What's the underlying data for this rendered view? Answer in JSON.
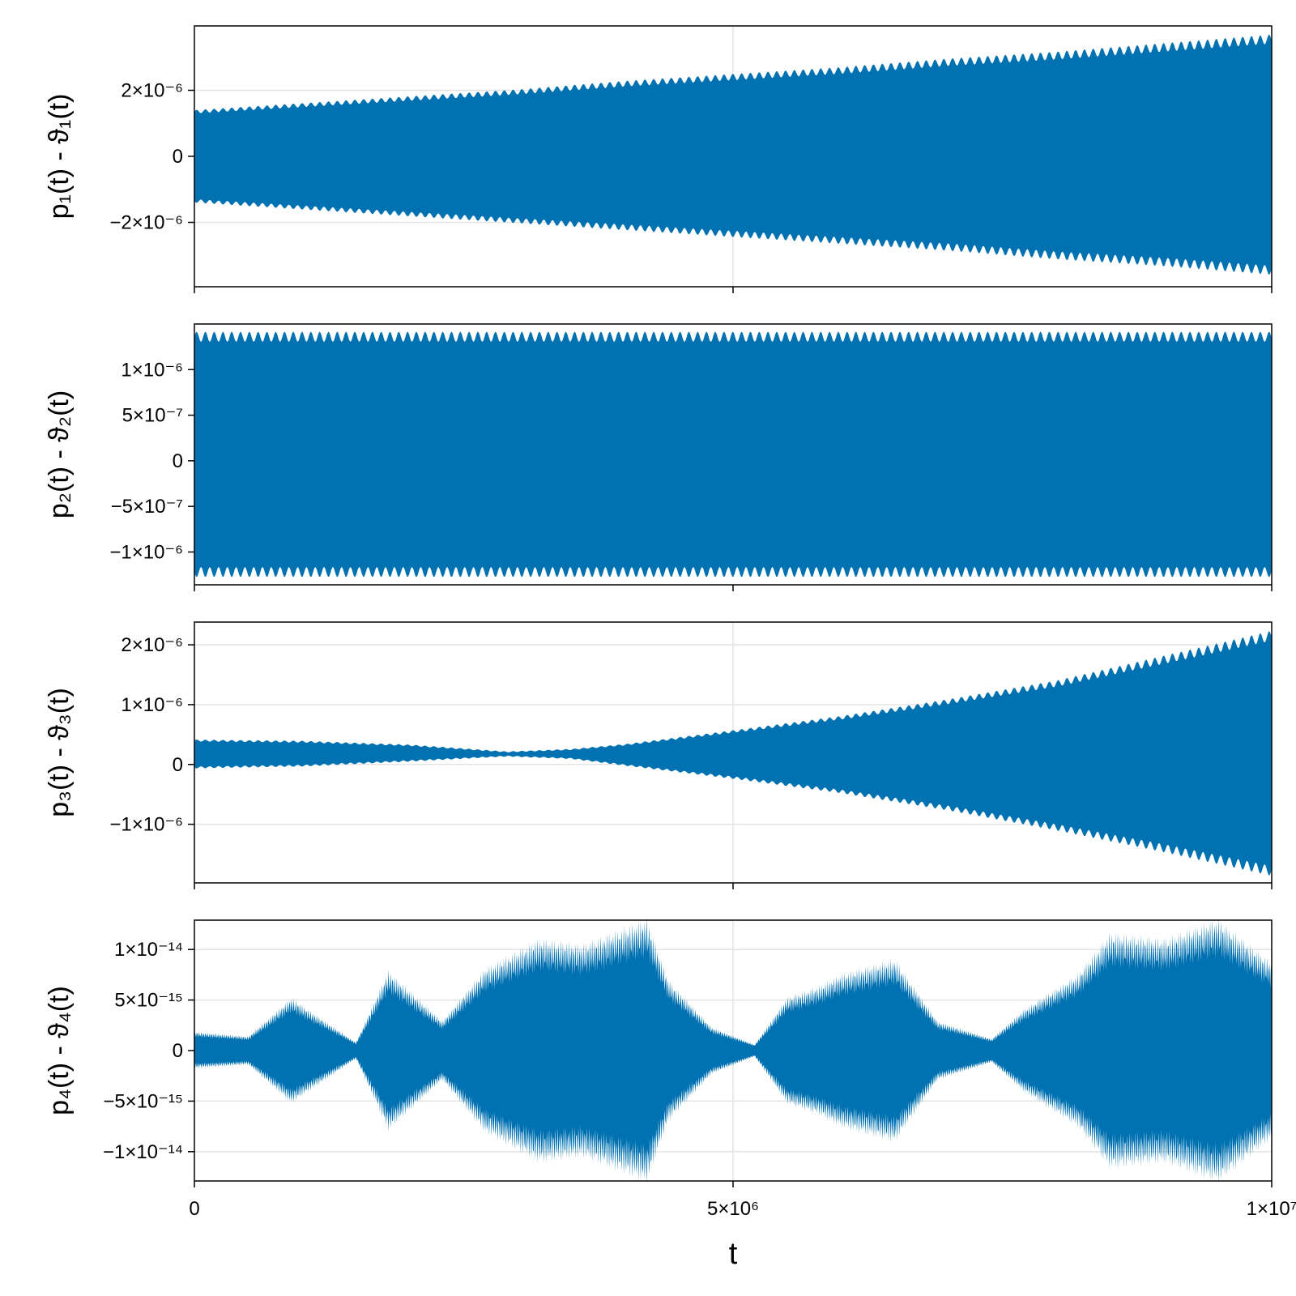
{
  "chart_data": [
    {
      "type": "area",
      "ylabel": "p₁(t) - ϑ₁(t)",
      "yticks": [
        {
          "value": 2e-06,
          "label": "2×10⁻⁶"
        },
        {
          "value": 0,
          "label": "0"
        },
        {
          "value": -2e-06,
          "label": "−2×10⁻⁶"
        }
      ],
      "ylim": [
        -3.95e-06,
        3.95e-06
      ],
      "xlim": [
        0,
        10000000
      ],
      "grid": true,
      "color": "#0072b2",
      "series": [
        {
          "x": [
            0,
            1000000,
            2000000,
            3000000,
            4000000,
            5000000,
            6000000,
            7000000,
            8000000,
            9000000,
            10000000
          ],
          "upper": [
            1.35e-06,
            1.55e-06,
            1.75e-06,
            1.95e-06,
            2.2e-06,
            2.4e-06,
            2.6e-06,
            2.85e-06,
            3.05e-06,
            3.3e-06,
            3.55e-06
          ],
          "lower": [
            -1.35e-06,
            -1.55e-06,
            -1.75e-06,
            -1.95e-06,
            -2.15e-06,
            -2.35e-06,
            -2.55e-06,
            -2.75e-06,
            -3e-06,
            -3.2e-06,
            -3.45e-06
          ]
        }
      ]
    },
    {
      "type": "area",
      "ylabel": "p₂(t) - ϑ₂(t)",
      "yticks": [
        {
          "value": 1e-06,
          "label": "1×10⁻⁶"
        },
        {
          "value": 5e-07,
          "label": "5×10⁻⁷"
        },
        {
          "value": 0,
          "label": "0"
        },
        {
          "value": -5e-07,
          "label": "−5×10⁻⁷"
        },
        {
          "value": -1e-06,
          "label": "−1×10⁻⁶"
        }
      ],
      "ylim": [
        -1.36e-06,
        1.5e-06
      ],
      "xlim": [
        0,
        10000000
      ],
      "grid": false,
      "color": "#0072b2",
      "series": [
        {
          "x": [
            0,
            2500000,
            5000000,
            7500000,
            10000000
          ],
          "upper": [
            1.36e-06,
            1.36e-06,
            1.36e-06,
            1.36e-06,
            1.36e-06
          ],
          "lower": [
            -1.22e-06,
            -1.22e-06,
            -1.22e-06,
            -1.22e-06,
            -1.22e-06
          ]
        }
      ]
    },
    {
      "type": "area",
      "ylabel": "p₃(t) - ϑ₃(t)",
      "yticks": [
        {
          "value": 2e-06,
          "label": "2×10⁻⁶"
        },
        {
          "value": 1e-06,
          "label": "1×10⁻⁶"
        },
        {
          "value": 0,
          "label": "0"
        },
        {
          "value": -1e-06,
          "label": "−1×10⁻⁶"
        }
      ],
      "ylim": [
        -1.98e-06,
        2.38e-06
      ],
      "xlim": [
        0,
        10000000
      ],
      "grid": true,
      "color": "#0072b2",
      "series": [
        {
          "x": [
            0,
            1000000,
            2000000,
            2900000,
            3500000,
            4000000,
            5000000,
            6000000,
            7000000,
            8000000,
            9000000,
            10000000
          ],
          "upper": [
            4e-07,
            3.8e-07,
            3.2e-07,
            2.1e-07,
            2.5e-07,
            3.3e-07,
            5.5e-07,
            7.8e-07,
            1.05e-06,
            1.35e-06,
            1.75e-06,
            2.15e-06
          ],
          "lower": [
            -5e-08,
            -2e-08,
            6e-08,
            1.4e-07,
            1e-07,
            -1e-08,
            -2.2e-07,
            -4.5e-07,
            -7.3e-07,
            -1.05e-06,
            -1.4e-06,
            -1.78e-06
          ]
        }
      ]
    },
    {
      "type": "area",
      "ylabel": "p₄(t) - ϑ₄(t)",
      "xlabel": "t",
      "xticks": [
        {
          "value": 0,
          "label": "0"
        },
        {
          "value": 5000000,
          "label": "5×10⁶"
        },
        {
          "value": 10000000,
          "label": "1×10⁷"
        }
      ],
      "yticks": [
        {
          "value": 1e-14,
          "label": "1×10⁻¹⁴"
        },
        {
          "value": 5e-15,
          "label": "5×10⁻¹⁵"
        },
        {
          "value": 0,
          "label": "0"
        },
        {
          "value": -5e-15,
          "label": "−5×10⁻¹⁵"
        },
        {
          "value": -1e-14,
          "label": "−1×10⁻¹⁴"
        }
      ],
      "ylim": [
        -1.29e-14,
        1.29e-14
      ],
      "xlim": [
        0,
        10000000
      ],
      "grid": true,
      "color": "#0072b2",
      "series": [
        {
          "x": [
            0,
            500000,
            900000,
            1500000,
            1800000,
            2300000,
            2700000,
            3200000,
            3600000,
            4200000,
            4400000,
            4800000,
            5200000,
            5500000,
            5800000,
            6000000,
            6500000,
            6900000,
            7400000,
            7700000,
            8200000,
            8500000,
            9000000,
            9500000,
            10000000
          ],
          "upper": [
            1.6e-15,
            1.2e-15,
            4.5e-15,
            7e-16,
            6.8e-15,
            2.5e-15,
            7e-15,
            9.5e-15,
            9e-15,
            1.12e-14,
            6e-15,
            2e-15,
            5e-16,
            4.5e-15,
            5.5e-15,
            6.5e-15,
            7.8e-15,
            2.5e-15,
            1e-15,
            3.5e-15,
            6.5e-15,
            1e-14,
            9.5e-15,
            1.12e-14,
            7.5e-15
          ],
          "lower": [
            -1.5e-15,
            -1.2e-15,
            -4.5e-15,
            -7e-16,
            -6.8e-15,
            -2.5e-15,
            -7e-15,
            -9.5e-15,
            -9e-15,
            -1.12e-14,
            -6e-15,
            -2e-15,
            -5e-16,
            -4.5e-15,
            -5.5e-15,
            -6.5e-15,
            -7.8e-15,
            -2.5e-15,
            -1e-15,
            -3.5e-15,
            -6.5e-15,
            -1e-14,
            -9.5e-15,
            -1.12e-14,
            -7.5e-15
          ]
        }
      ]
    }
  ]
}
